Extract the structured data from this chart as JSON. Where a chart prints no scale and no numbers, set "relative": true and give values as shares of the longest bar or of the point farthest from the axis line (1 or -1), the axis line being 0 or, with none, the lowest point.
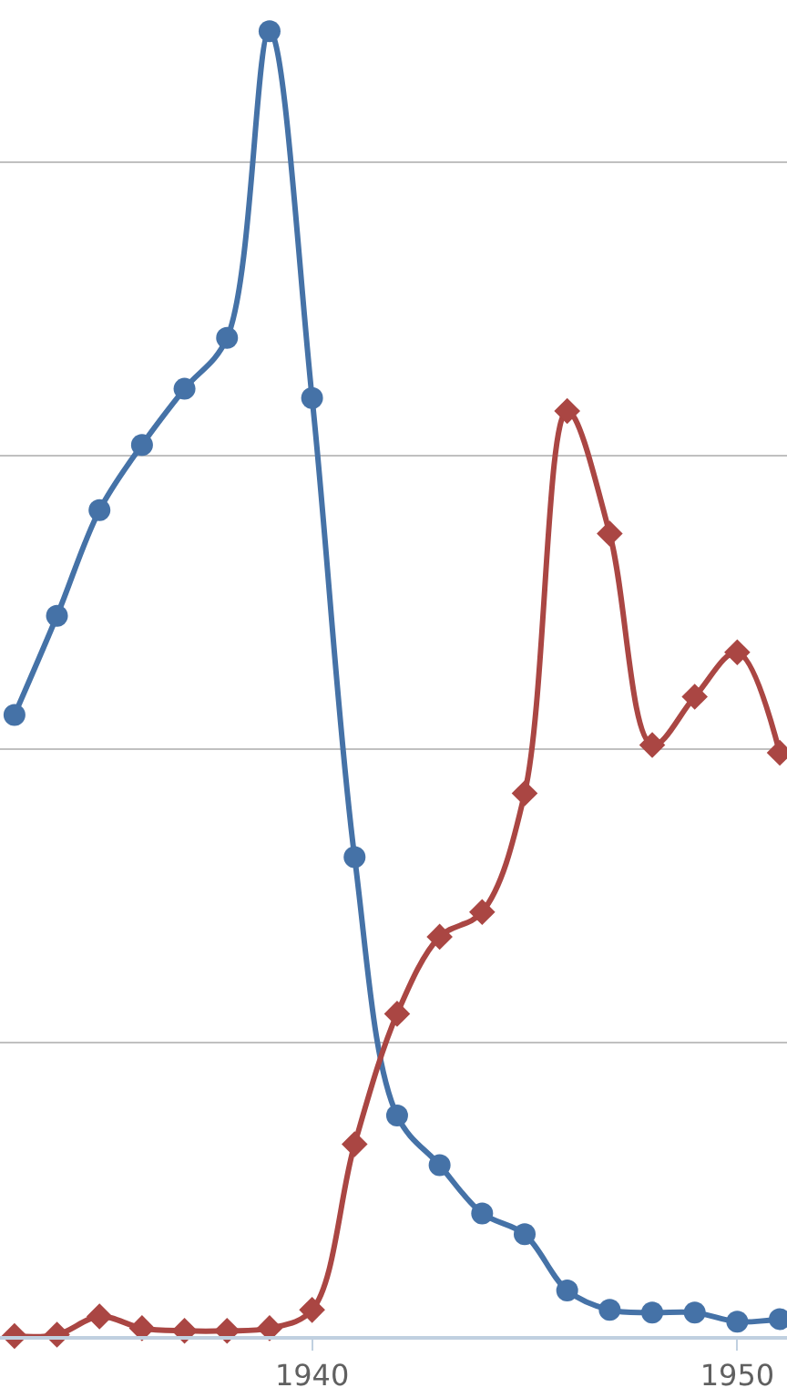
{
  "chart_data": {
    "type": "line",
    "relative": true,
    "grid": "y",
    "x": [
      1933,
      1934,
      1935,
      1936,
      1937,
      1938,
      1939,
      1940,
      1941,
      1942,
      1943,
      1944,
      1945,
      1946,
      1947,
      1948,
      1949,
      1950,
      1951
    ],
    "xlim": [
      1932.66,
      1951.17
    ],
    "xticks": [
      1940,
      1950
    ],
    "series": [
      {
        "color": "#4572a7",
        "marker": "circle",
        "values": [
          0.476,
          0.552,
          0.633,
          0.683,
          0.726,
          0.765,
          1,
          0.719,
          0.367,
          0.169,
          0.131,
          0.094,
          0.078,
          0.035,
          0.02,
          0.018,
          0.018,
          0.011,
          0.013
        ]
      },
      {
        "color": "#aa4643",
        "marker": "diamond",
        "values": [
          0,
          0.001,
          0.015,
          0.006,
          0.004,
          0.004,
          0.006,
          0.02,
          0.147,
          0.247,
          0.306,
          0.325,
          0.416,
          0.709,
          0.615,
          0.453,
          0.49,
          0.524,
          0.447
        ]
      }
    ]
  }
}
